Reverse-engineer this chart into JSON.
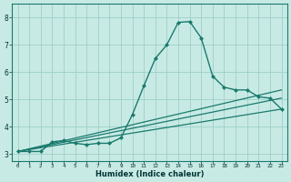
{
  "xlabel": "Humidex (Indice chaleur)",
  "xlim": [
    -0.5,
    23.5
  ],
  "ylim": [
    2.75,
    8.5
  ],
  "xticks": [
    0,
    1,
    2,
    3,
    4,
    5,
    6,
    7,
    8,
    9,
    10,
    11,
    12,
    13,
    14,
    15,
    16,
    17,
    18,
    19,
    20,
    21,
    22,
    23
  ],
  "yticks": [
    3,
    4,
    5,
    6,
    7,
    8
  ],
  "background_color": "#c8eae4",
  "grid_color": "#9dcfca",
  "line_color": "#1a7a6e",
  "lines": [
    {
      "x": [
        0,
        1,
        2,
        3,
        4,
        5,
        6,
        7,
        8,
        9,
        10,
        11,
        12,
        13,
        14,
        15,
        16,
        17,
        18,
        19,
        20,
        21,
        22,
        23
      ],
      "y": [
        3.1,
        3.1,
        3.1,
        3.45,
        3.5,
        3.4,
        3.35,
        3.4,
        3.4,
        3.6,
        4.45,
        5.5,
        6.5,
        7.0,
        7.82,
        7.85,
        7.25,
        5.85,
        5.45,
        5.35,
        5.35,
        5.1,
        5.05,
        4.65
      ],
      "marker": "D",
      "markersize": 2.0,
      "linewidth": 1.0
    },
    {
      "x": [
        0,
        23
      ],
      "y": [
        3.1,
        4.65
      ],
      "marker": null,
      "linewidth": 0.9
    },
    {
      "x": [
        0,
        23
      ],
      "y": [
        3.1,
        5.05
      ],
      "marker": null,
      "linewidth": 0.9
    },
    {
      "x": [
        0,
        23
      ],
      "y": [
        3.1,
        5.35
      ],
      "marker": null,
      "linewidth": 0.9
    }
  ]
}
